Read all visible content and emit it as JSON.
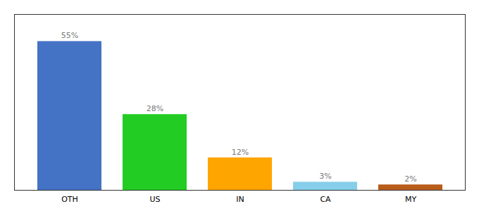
{
  "chart_data": {
    "type": "bar",
    "categories": [
      "OTH",
      "US",
      "IN",
      "CA",
      "MY"
    ],
    "values": [
      55,
      28,
      12,
      3,
      2
    ],
    "value_labels": [
      "55%",
      "28%",
      "12%",
      "3%",
      "2%"
    ],
    "colors": [
      "#4472C4",
      "#22CC22",
      "#FFA500",
      "#87CEEB",
      "#B85C1A"
    ],
    "ylim": [
      0,
      65
    ],
    "data_labels": true,
    "tick_labels": "x"
  }
}
